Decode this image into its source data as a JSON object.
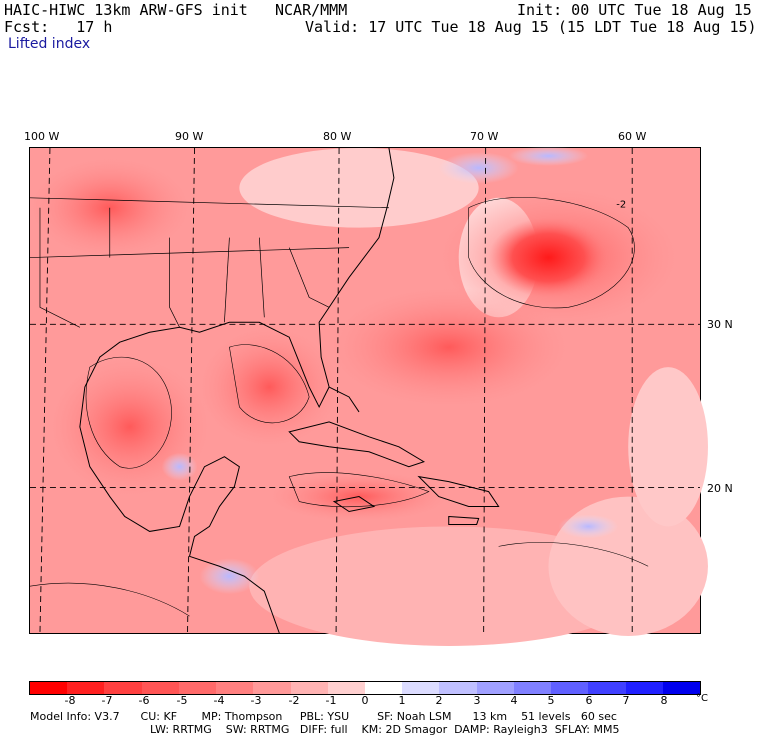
{
  "header": {
    "model": "HAIC-HIWC 13km ARW-GFS init",
    "org": "NCAR/MMM",
    "init": "Init: 00 UTC Tue 18 Aug 15",
    "fcst": "Fcst:   17 h",
    "valid": "Valid: 17 UTC Tue 18 Aug 15 (15 LDT Tue 18 Aug 15)",
    "field": "Lifted index"
  },
  "map": {
    "lon_labels": [
      "100 W",
      "90 W",
      "80 W",
      "70 W",
      "60 W"
    ],
    "lat_labels": [
      "30 N",
      "20 N"
    ],
    "contour_label": "-2"
  },
  "colorbar": {
    "ticks": [
      "-8",
      "-7",
      "-6",
      "-5",
      "-4",
      "-3",
      "-2",
      "-1",
      "0",
      "1",
      "2",
      "3",
      "4",
      "5",
      "6",
      "7",
      "8"
    ],
    "unit": "°C",
    "colors": [
      "#ff0000",
      "#ff2020",
      "#ff4040",
      "#ff5555",
      "#ff6a6a",
      "#ff8080",
      "#ff9999",
      "#ffb3b3",
      "#ffd0d0",
      "#ffffff",
      "#dcdcff",
      "#c0c0ff",
      "#a0a0ff",
      "#8080ff",
      "#6060ff",
      "#4040ff",
      "#2020ff",
      "#0000ee"
    ]
  },
  "footer": {
    "line1": "Model Info: V3.7      CU: KF       MP: Thompson     PBL: YSU        SF: Noah LSM      13 km    51 levels   60 sec",
    "line2": "LW: RRTMG    SW: RRTMG   DIFF: full    KM: 2D Smagor  DAMP: Rayleigh3  SFLAY: MM5"
  }
}
